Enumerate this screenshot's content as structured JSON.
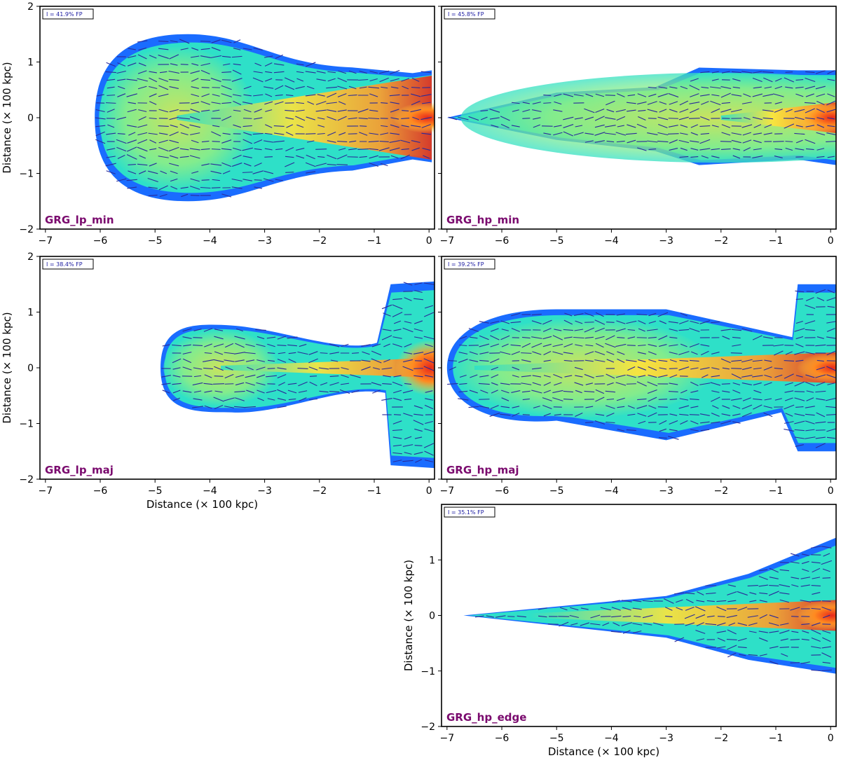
{
  "chart_data": [
    {
      "type": "heatmap",
      "name": "GRG_lp_min",
      "annotation": "I = 41.9% FP",
      "xlim": [
        -7.1,
        0.1
      ],
      "ylim": [
        -2,
        2
      ],
      "xticks": [
        -7,
        -6,
        -5,
        -4,
        -3,
        -2,
        -1,
        0
      ],
      "yticks": [
        -2,
        -1,
        0,
        1,
        2
      ],
      "xlabel": "",
      "ylabel": "Distance (× 100 kpc)",
      "extent_x": [
        -6.1,
        0.05
      ],
      "lobe_halfwidth": 1.5,
      "jet_halfwidth": 0.95,
      "lobe_center": -4.6
    },
    {
      "type": "heatmap",
      "name": "GRG_hp_min",
      "annotation": "I = 45.8% FP",
      "xlim": [
        -7.1,
        0.1
      ],
      "ylim": [
        -2,
        2
      ],
      "xticks": [
        -7,
        -6,
        -5,
        -4,
        -3,
        -2,
        -1,
        0
      ],
      "yticks": [
        -2,
        -1,
        0,
        1,
        2
      ],
      "xlabel": "",
      "ylabel": "",
      "extent_x": [
        -7.0,
        0.1
      ],
      "lobe_halfwidth": 0.95,
      "jet_halfwidth": 0.55,
      "lobe_center": -2.0
    },
    {
      "type": "heatmap",
      "name": "GRG_lp_maj",
      "annotation": "I = 38.4% FP",
      "xlim": [
        -7.1,
        0.1
      ],
      "ylim": [
        -2,
        2
      ],
      "xticks": [
        -7,
        -6,
        -5,
        -4,
        -3,
        -2,
        -1,
        0
      ],
      "yticks": [
        -2,
        -1,
        0,
        1,
        2
      ],
      "xlabel": "Distance (× 100 kpc)",
      "ylabel": "Distance (× 100 kpc)",
      "extent_x": [
        -4.9,
        0.1
      ],
      "lobe_halfwidth": 0.8,
      "jet_halfwidth": 0.35,
      "lobe_center": -3.8
    },
    {
      "type": "heatmap",
      "name": "GRG_hp_maj",
      "annotation": "I = 39.2% FP",
      "xlim": [
        -7.1,
        0.1
      ],
      "ylim": [
        -2,
        2
      ],
      "xticks": [
        -7,
        -6,
        -5,
        -4,
        -3,
        -2,
        -1,
        0
      ],
      "yticks": [
        -2,
        -1,
        0,
        1,
        2
      ],
      "xlabel": "",
      "ylabel": "",
      "extent_x": [
        -7.0,
        0.1
      ],
      "lobe_halfwidth": 1.05,
      "jet_halfwidth": 0.95,
      "lobe_center": -4.5
    },
    {
      "type": "heatmap",
      "name": "GRG_hp_edge",
      "annotation": "I = 35.1% FP",
      "xlim": [
        -7.1,
        0.1
      ],
      "ylim": [
        -2,
        2
      ],
      "xticks": [
        -7,
        -6,
        -5,
        -4,
        -3,
        -2,
        -1,
        0
      ],
      "yticks": [
        -2,
        -1,
        0,
        1
      ],
      "xlabel": "Distance (× 100 kpc)",
      "ylabel": "Distance (× 100 kpc)",
      "extent_x": [
        -6.7,
        0.1
      ],
      "lobe_halfwidth": 0.2,
      "jet_halfwidth": 1.3,
      "lobe_center": -6.0
    }
  ],
  "colors": {
    "panel_label": "#7a0a6e",
    "annotation_text": "#1a1aa0",
    "vector": "#2a2a9a",
    "frame": "#000000",
    "low": "#1a6cff",
    "mid": "#2ee0c8",
    "high": "#ffe43a",
    "peak": "#e8281a"
  }
}
